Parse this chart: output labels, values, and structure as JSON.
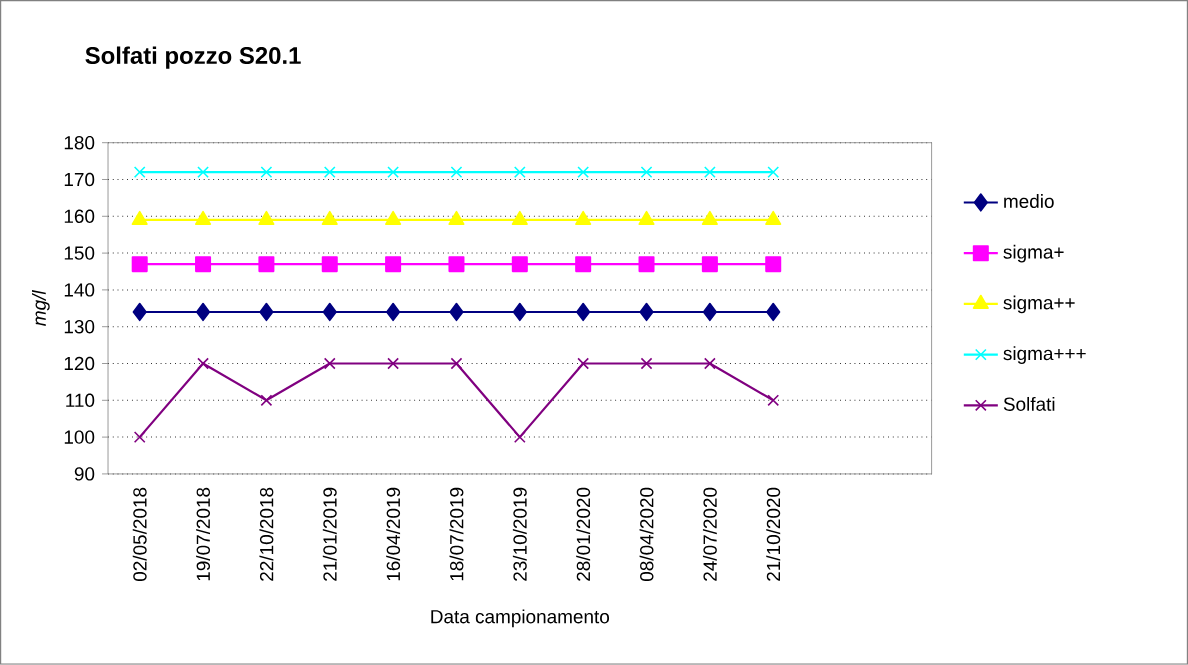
{
  "chart_data": {
    "type": "line",
    "title": "Solfati pozzo S20.1",
    "xlabel": "Data campionamento",
    "ylabel": "mg/l",
    "categories": [
      "02/05/2018",
      "19/07/2018",
      "22/10/2018",
      "21/01/2019",
      "16/04/2019",
      "18/07/2019",
      "23/10/2019",
      "28/01/2020",
      "08/04/2020",
      "24/07/2020",
      "21/10/2020",
      null,
      null
    ],
    "series": [
      {
        "name": "medio",
        "color": "#000080",
        "marker": "diamond",
        "values": [
          134,
          134,
          134,
          134,
          134,
          134,
          134,
          134,
          134,
          134,
          134,
          null,
          null
        ]
      },
      {
        "name": "sigma+",
        "color": "#ff00ff",
        "marker": "square",
        "values": [
          147,
          147,
          147,
          147,
          147,
          147,
          147,
          147,
          147,
          147,
          147,
          null,
          null
        ]
      },
      {
        "name": "sigma++",
        "color": "#ffff00",
        "marker": "triangle",
        "values": [
          159,
          159,
          159,
          159,
          159,
          159,
          159,
          159,
          159,
          159,
          159,
          null,
          null
        ]
      },
      {
        "name": "sigma+++",
        "color": "#00ffff",
        "marker": "cross",
        "values": [
          172,
          172,
          172,
          172,
          172,
          172,
          172,
          172,
          172,
          172,
          172,
          null,
          null
        ]
      },
      {
        "name": "Solfati",
        "color": "#800080",
        "marker": "cross",
        "values": [
          100,
          120,
          110,
          120,
          120,
          120,
          100,
          120,
          120,
          120,
          110,
          null,
          null
        ]
      }
    ],
    "ylim": [
      90,
      180
    ],
    "yticks": [
      90,
      100,
      110,
      120,
      130,
      140,
      150,
      160,
      170,
      180
    ],
    "grid": "y",
    "legend": "right",
    "line_style": "solid"
  }
}
